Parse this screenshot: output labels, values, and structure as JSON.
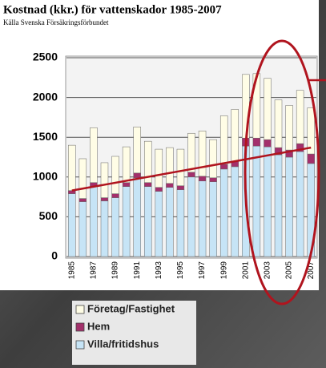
{
  "chart_data": {
    "type": "stacked_bar",
    "title": "Kostnad (kkr.) för vattenskador 1985-2007",
    "subtitle": "Källa Svenska Försäkringsförbundet",
    "categories": [
      "1985",
      null,
      "1987",
      null,
      "1989",
      null,
      "1991",
      null,
      "1993",
      null,
      "1995",
      null,
      "1997",
      null,
      "1999",
      null,
      "2001",
      null,
      "2003",
      null,
      "2005",
      null,
      "2007"
    ],
    "series": [
      {
        "name": "Företag/Fastighet",
        "color": "#fffde6",
        "values": [
          570,
          500,
          690,
          440,
          470,
          450,
          580,
          520,
          480,
          450,
          460,
          490,
          570,
          480,
          610,
          650,
          800,
          810,
          770,
          600,
          560,
          670,
          580
        ]
      },
      {
        "name": "Hem",
        "color": "#a3306b",
        "values": [
          40,
          40,
          50,
          40,
          50,
          50,
          60,
          50,
          50,
          50,
          50,
          60,
          60,
          50,
          60,
          70,
          100,
          100,
          90,
          90,
          90,
          100,
          120
        ]
      },
      {
        "name": "Villa/fritidshus",
        "color": "#c6e4f6",
        "values": [
          790,
          690,
          880,
          700,
          740,
          880,
          990,
          880,
          820,
          870,
          840,
          1000,
          950,
          940,
          1100,
          1130,
          1390,
          1390,
          1380,
          1280,
          1250,
          1320,
          1170
        ]
      }
    ],
    "trend_line": {
      "color": "#b0141e",
      "values": [
        830,
        1370
      ]
    },
    "ylim": [
      0,
      2500
    ],
    "yticks": [
      0,
      500,
      1000,
      1500,
      2000,
      2500
    ],
    "grid": true
  }
}
